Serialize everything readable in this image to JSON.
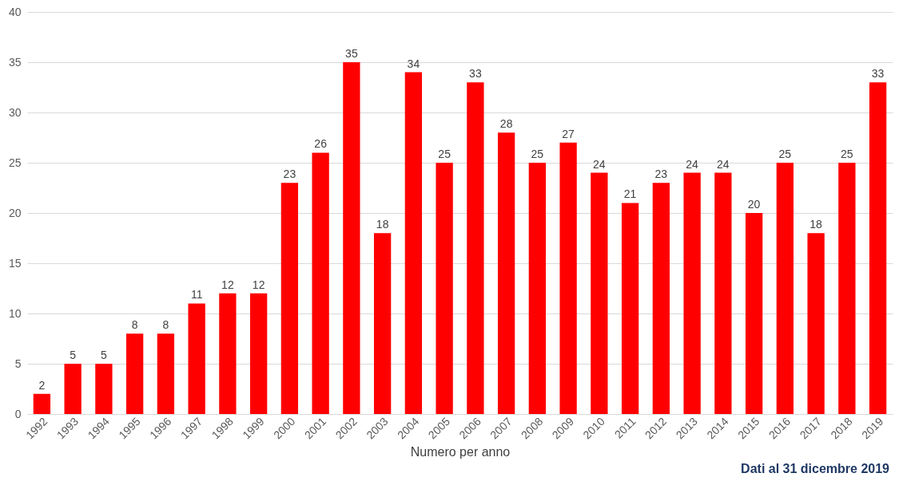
{
  "chart_data": {
    "type": "bar",
    "xlabel": "Numero per anno",
    "annotations": [
      "Dati al 31 dicembre 2019"
    ],
    "categories": [
      "1992",
      "1993",
      "1994",
      "1995",
      "1996",
      "1997",
      "1998",
      "1999",
      "2000",
      "2001",
      "2002",
      "2003",
      "2004",
      "2005",
      "2006",
      "2007",
      "2008",
      "2009",
      "2010",
      "2011",
      "2012",
      "2013",
      "2014",
      "2015",
      "2016",
      "2017",
      "2018",
      "2019"
    ],
    "values": [
      2,
      5,
      5,
      8,
      8,
      11,
      12,
      12,
      23,
      26,
      35,
      18,
      34,
      25,
      33,
      28,
      25,
      27,
      24,
      21,
      23,
      24,
      24,
      20,
      25,
      18,
      25,
      33
    ],
    "color": "#ff0000",
    "ylim": [
      0,
      40
    ],
    "yticks": [
      0,
      5,
      10,
      15,
      20,
      25,
      30,
      35,
      40
    ],
    "grid": "y",
    "data_labels": true
  }
}
